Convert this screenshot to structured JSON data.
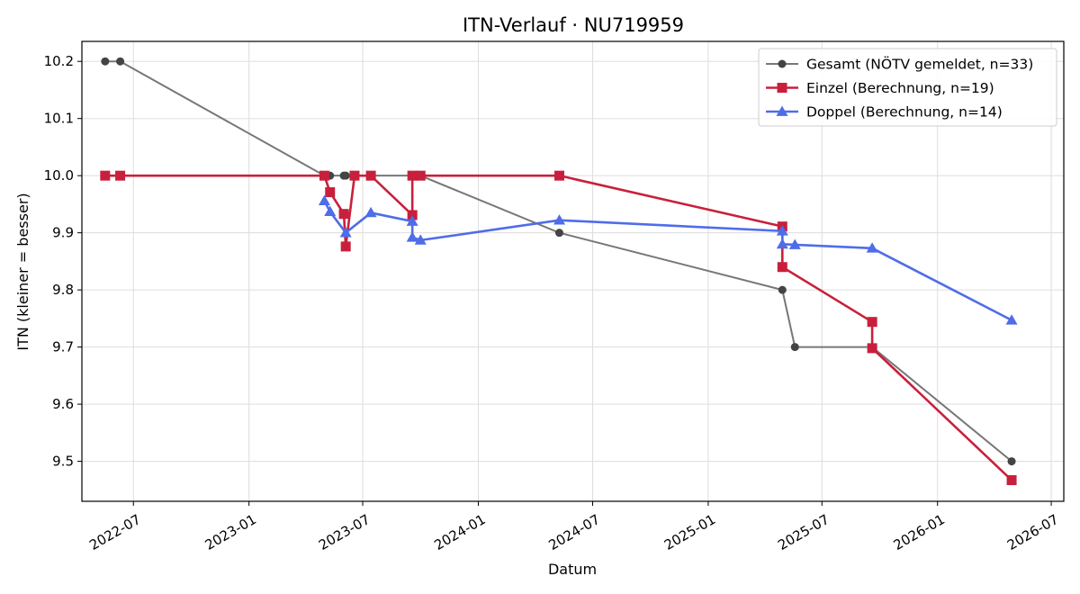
{
  "chart_data": {
    "type": "line",
    "title": "ITN-Verlauf · NU719959",
    "xlabel": "Datum",
    "ylabel": "ITN  (kleiner = besser)",
    "x_is_date": true,
    "xlim": [
      "2022-04-10",
      "2026-07-21"
    ],
    "ylim": [
      9.43,
      10.235
    ],
    "x_ticks": [
      {
        "date": "2022-07-01",
        "label": "2022-07"
      },
      {
        "date": "2023-01-01",
        "label": "2023-01"
      },
      {
        "date": "2023-07-01",
        "label": "2023-07"
      },
      {
        "date": "2024-01-01",
        "label": "2024-01"
      },
      {
        "date": "2024-07-01",
        "label": "2024-07"
      },
      {
        "date": "2025-01-01",
        "label": "2025-01"
      },
      {
        "date": "2025-07-01",
        "label": "2025-07"
      },
      {
        "date": "2026-01-01",
        "label": "2026-01"
      },
      {
        "date": "2026-07-01",
        "label": "2026-07"
      }
    ],
    "y_ticks": [
      {
        "value": 9.5,
        "label": "9.5"
      },
      {
        "value": 9.6,
        "label": "9.6"
      },
      {
        "value": 9.7,
        "label": "9.7"
      },
      {
        "value": 9.8,
        "label": "9.8"
      },
      {
        "value": 9.9,
        "label": "9.9"
      },
      {
        "value": 10.0,
        "label": "10.0"
      },
      {
        "value": 10.1,
        "label": "10.1"
      },
      {
        "value": 10.2,
        "label": "10.2"
      }
    ],
    "grid": true,
    "legend_position": "top-right",
    "series": [
      {
        "name": "Gesamt (NÖTV gemeldet, n=33)",
        "color": "#444444",
        "marker": "circle",
        "points": [
          {
            "x": "2022-05-17",
            "y": 10.2
          },
          {
            "x": "2022-06-10",
            "y": 10.2
          },
          {
            "x": "2023-05-01",
            "y": 10.0
          },
          {
            "x": "2023-05-10",
            "y": 10.0
          },
          {
            "x": "2023-06-01",
            "y": 10.0
          },
          {
            "x": "2023-06-04",
            "y": 10.0
          },
          {
            "x": "2023-06-18",
            "y": 10.0
          },
          {
            "x": "2023-07-14",
            "y": 10.0
          },
          {
            "x": "2023-09-18",
            "y": 10.0
          },
          {
            "x": "2023-10-01",
            "y": 10.0
          },
          {
            "x": "2024-05-09",
            "y": 9.9
          },
          {
            "x": "2025-04-29",
            "y": 9.8
          },
          {
            "x": "2025-05-19",
            "y": 9.7
          },
          {
            "x": "2025-09-19",
            "y": 9.7
          },
          {
            "x": "2026-04-29",
            "y": 9.5
          }
        ]
      },
      {
        "name": "Einzel (Berechnung, n=19)",
        "color": "#c8203c",
        "marker": "square",
        "points": [
          {
            "x": "2022-05-17",
            "y": 10.0
          },
          {
            "x": "2022-06-10",
            "y": 10.0
          },
          {
            "x": "2023-05-01",
            "y": 10.0
          },
          {
            "x": "2023-05-10",
            "y": 9.971
          },
          {
            "x": "2023-06-01",
            "y": 9.933
          },
          {
            "x": "2023-06-04",
            "y": 9.876
          },
          {
            "x": "2023-06-18",
            "y": 10.0
          },
          {
            "x": "2023-07-14",
            "y": 10.0
          },
          {
            "x": "2023-09-18",
            "y": 9.931
          },
          {
            "x": "2023-09-18",
            "y": 10.0
          },
          {
            "x": "2023-10-01",
            "y": 10.0
          },
          {
            "x": "2024-05-09",
            "y": 10.0
          },
          {
            "x": "2025-04-29",
            "y": 9.911
          },
          {
            "x": "2025-04-29",
            "y": 9.84
          },
          {
            "x": "2025-09-19",
            "y": 9.744
          },
          {
            "x": "2025-09-19",
            "y": 9.698
          },
          {
            "x": "2026-04-29",
            "y": 9.467
          }
        ]
      },
      {
        "name": "Doppel (Berechnung, n=14)",
        "color": "#4f6de8",
        "marker": "triangle",
        "points": [
          {
            "x": "2023-05-01",
            "y": 9.956
          },
          {
            "x": "2023-05-10",
            "y": 9.937
          },
          {
            "x": "2023-06-04",
            "y": 9.9
          },
          {
            "x": "2023-07-14",
            "y": 9.935
          },
          {
            "x": "2023-09-18",
            "y": 9.92
          },
          {
            "x": "2023-09-18",
            "y": 9.892
          },
          {
            "x": "2023-10-01",
            "y": 9.887
          },
          {
            "x": "2024-05-09",
            "y": 9.922
          },
          {
            "x": "2025-04-29",
            "y": 9.903
          },
          {
            "x": "2025-04-29",
            "y": 9.88
          },
          {
            "x": "2025-05-19",
            "y": 9.879
          },
          {
            "x": "2025-09-19",
            "y": 9.873
          },
          {
            "x": "2026-04-29",
            "y": 9.747
          }
        ]
      }
    ]
  }
}
